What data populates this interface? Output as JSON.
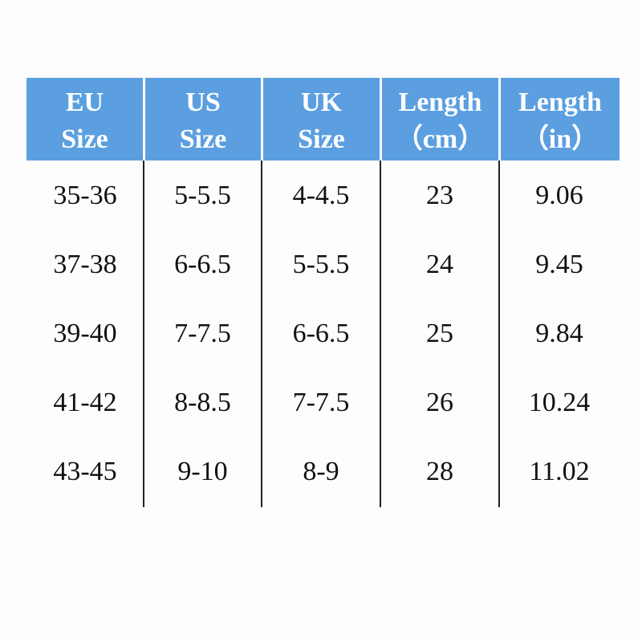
{
  "table": {
    "header": [
      [
        "EU",
        "Size"
      ],
      [
        "US",
        "Size"
      ],
      [
        "UK",
        "Size"
      ],
      [
        "Length",
        "（cm）"
      ],
      [
        "Length",
        "（in）"
      ]
    ],
    "rows": [
      [
        "35-36",
        "5-5.5",
        "4-4.5",
        "23",
        "9.06"
      ],
      [
        "37-38",
        "6-6.5",
        "5-5.5",
        "24",
        "9.45"
      ],
      [
        "39-40",
        "7-7.5",
        "6-6.5",
        "25",
        "9.84"
      ],
      [
        "41-42",
        "8-8.5",
        "7-7.5",
        "26",
        "10.24"
      ],
      [
        "43-45",
        "9-10",
        "8-9",
        "28",
        "11.02"
      ]
    ]
  }
}
